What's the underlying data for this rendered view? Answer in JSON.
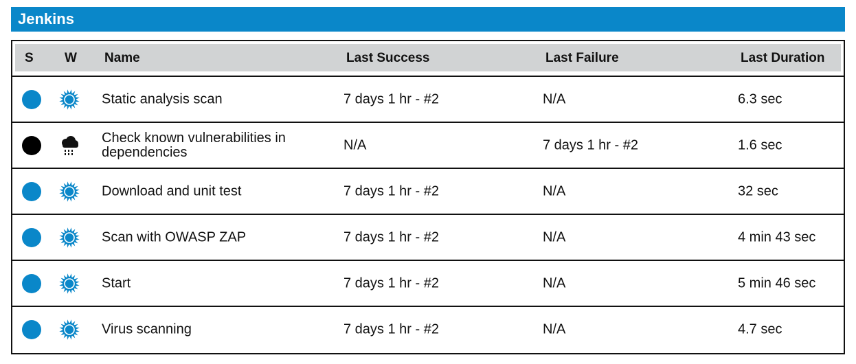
{
  "app": {
    "title": "Jenkins"
  },
  "colors": {
    "header_bar": "#0a87c9",
    "status_success": "#0a87c9",
    "status_failed": "#000000",
    "table_header_bg": "#d1d3d4"
  },
  "table": {
    "columns": {
      "s": "S",
      "w": "W",
      "name": "Name",
      "last_success": "Last Success",
      "last_failure": "Last Failure",
      "last_duration": "Last Duration"
    },
    "rows": [
      {
        "status": "success",
        "weather": "sunny-icon",
        "name": "Static analysis scan",
        "last_success": "7 days 1 hr - #2",
        "last_failure": "N/A",
        "last_duration": "6.3 sec"
      },
      {
        "status": "failed",
        "weather": "stormy-icon",
        "name": "Check known vulnerabilities in dependencies",
        "last_success": "N/A",
        "last_failure": "7 days 1 hr - #2",
        "last_duration": "1.6 sec"
      },
      {
        "status": "success",
        "weather": "sunny-icon",
        "name": "Download and unit test",
        "last_success": "7 days 1 hr - #2",
        "last_failure": "N/A",
        "last_duration": "32 sec"
      },
      {
        "status": "success",
        "weather": "sunny-icon",
        "name": "Scan with OWASP ZAP",
        "last_success": "7 days 1 hr - #2",
        "last_failure": "N/A",
        "last_duration": "4 min 43 sec"
      },
      {
        "status": "success",
        "weather": "sunny-icon",
        "name": "Start",
        "last_success": "7 days 1 hr - #2",
        "last_failure": "N/A",
        "last_duration": "5 min 46 sec"
      },
      {
        "status": "success",
        "weather": "sunny-icon",
        "name": "Virus scanning",
        "last_success": "7 days 1 hr - #2",
        "last_failure": "N/A",
        "last_duration": "4.7 sec"
      }
    ]
  }
}
